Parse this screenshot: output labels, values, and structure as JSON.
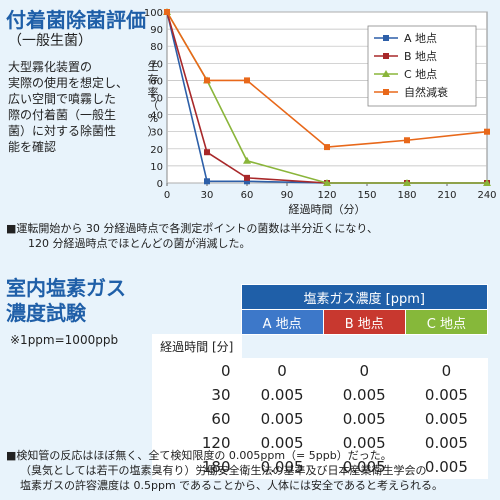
{
  "section1": {
    "title": "付着菌除菌評価",
    "subtitle": "（一般生菌）",
    "description_lines": [
      "大型霧化装置の",
      "実際の使用を想定し、",
      "広い空間で噴霧した",
      "際の付着菌（一般生",
      "菌）に対する除菌性",
      "能を確認"
    ],
    "note_lines": [
      "■運転開始から 30 分経過時点で各測定ポイントの菌数は半分近くになり、",
      "120 分経過時点でほとんどの菌が消滅した。"
    ]
  },
  "chart_data": {
    "type": "line",
    "x": [
      0,
      30,
      60,
      120,
      180,
      240
    ],
    "xticks": [
      0,
      30,
      60,
      90,
      120,
      150,
      180,
      210,
      240
    ],
    "yticks": [
      0,
      10,
      20,
      30,
      40,
      50,
      60,
      70,
      80,
      90,
      100
    ],
    "xlim": [
      0,
      240
    ],
    "ylim": [
      0,
      100
    ],
    "xlabel": "経過時間（分）",
    "ylabel": "生存率（%）",
    "legend_position": "top-right",
    "series": [
      {
        "name": "A 地点",
        "color": "#2d5fa8",
        "marker": "square",
        "values": [
          100,
          1,
          1,
          0,
          0,
          0
        ]
      },
      {
        "name": "B 地点",
        "color": "#a8282a",
        "marker": "square",
        "values": [
          100,
          18,
          3,
          0,
          0,
          0
        ]
      },
      {
        "name": "C 地点",
        "color": "#8ab53a",
        "marker": "triangle",
        "values": [
          100,
          60,
          13,
          0,
          0,
          0
        ]
      },
      {
        "name": "自然減衰",
        "color": "#e8681a",
        "marker": "square",
        "values": [
          100,
          60,
          60,
          21,
          25,
          30
        ]
      }
    ]
  },
  "section2": {
    "title_line1": "室内塩素ガス",
    "title_line2": "濃度試験",
    "unit_note": "※1ppm=1000ppb",
    "table": {
      "group_header": "塩素ガス濃度 [ppm]",
      "time_header": "経過時間 [分]",
      "columns": [
        "A 地点",
        "B 地点",
        "C 地点"
      ],
      "rows": [
        {
          "time": "0",
          "values": [
            "0",
            "0",
            "0"
          ]
        },
        {
          "time": "30",
          "values": [
            "0.005",
            "0.005",
            "0.005"
          ]
        },
        {
          "time": "60",
          "values": [
            "0.005",
            "0.005",
            "0.005"
          ]
        },
        {
          "time": "120",
          "values": [
            "0.005",
            "0.005",
            "0.005"
          ]
        },
        {
          "time": "180",
          "values": [
            "0.005",
            "0.005",
            "0.005"
          ]
        }
      ]
    },
    "note_lines": [
      "■検知管の反応はほぼ無く、全て検知限度の 0.005ppm（= 5ppb）だった。",
      "（臭気としては若干の塩素臭有り）労働安全衛生法の基準及び日本産業衛生学会の",
      "塩素ガスの許容濃度は 0.5ppm であることから、人体には安全であると考えられる。"
    ]
  }
}
